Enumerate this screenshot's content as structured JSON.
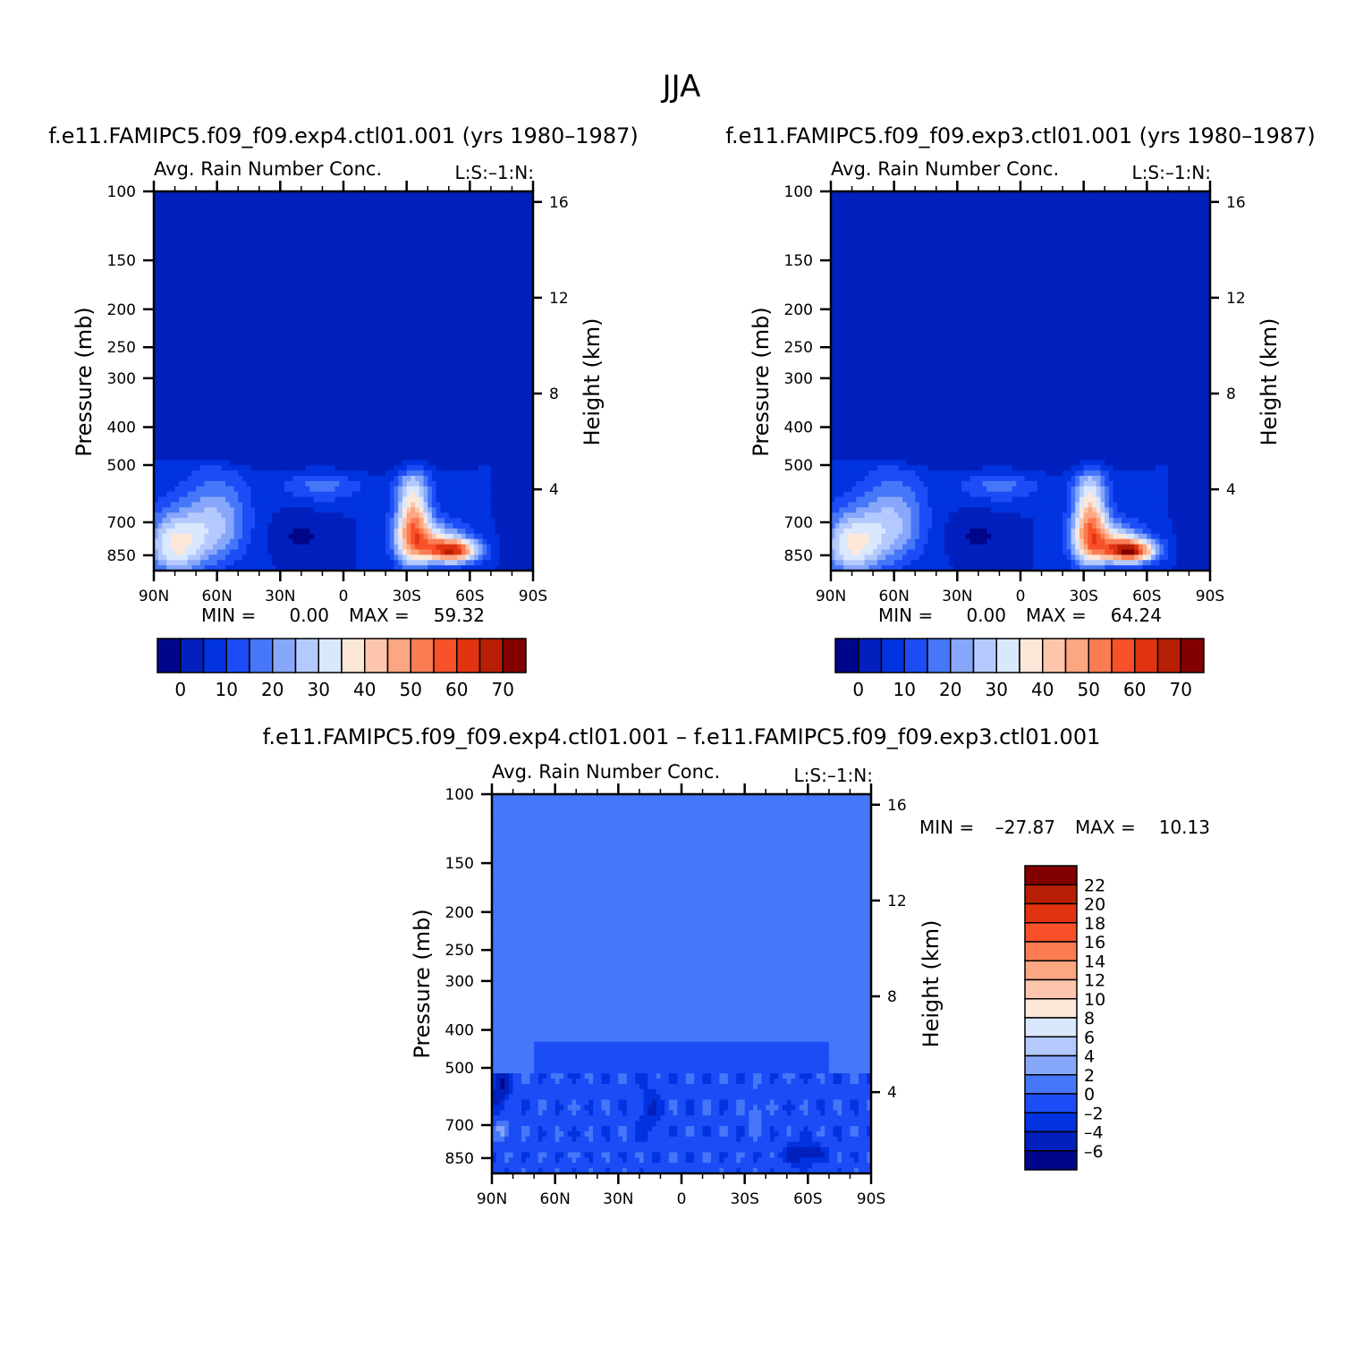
{
  "title": "JJA",
  "colors": {
    "abs_levels": [
      "#00068a",
      "#0120bd",
      "#0133e0",
      "#1c4cf6",
      "#4677f8",
      "#87a7fb",
      "#b4c9fd",
      "#d9e8fd",
      "#fde7d9",
      "#fdc6ac",
      "#fca682",
      "#fb7c52",
      "#f8512a",
      "#e23310",
      "#b71f04",
      "#830000"
    ],
    "diff_levels": [
      "#00068a",
      "#0120bd",
      "#0133e0",
      "#1c4cf6",
      "#4677f8",
      "#87a7fb",
      "#b4c9fd",
      "#d9e8fd",
      "#fde7d9",
      "#fdc6ac",
      "#fca682",
      "#fb7c52",
      "#f8512a",
      "#e23310",
      "#b71f04",
      "#830000"
    ]
  },
  "chart_data": [
    {
      "type": "heatmap",
      "case_title": "f.e11.FAMIPC5.f09_f09.exp4.ctl01.001 (yrs 1980–1987)",
      "variable": "Avg. Rain Number Conc.",
      "subtitle_right": "L:S:–1:N:",
      "ylabel": "Pressure (mb)",
      "ylabel_right": "Height (km)",
      "x_ticks": [
        "90N",
        "60N",
        "30N",
        "0",
        "30S",
        "60S",
        "90S"
      ],
      "x_values": [
        90,
        60,
        30,
        0,
        -30,
        -60,
        -90
      ],
      "y_ticks": [
        "100",
        "150",
        "200",
        "250",
        "300",
        "400",
        "500",
        "700",
        "850"
      ],
      "y_values": [
        100,
        150,
        200,
        250,
        300,
        400,
        500,
        700,
        850
      ],
      "y_right_ticks": [
        "16",
        "12",
        "8",
        "4"
      ],
      "stats": {
        "min_label": "MIN =",
        "min": "0.00",
        "max_label": "MAX =",
        "max": "59.32"
      },
      "colorbar_labels": [
        "0",
        "10",
        "20",
        "30",
        "40",
        "50",
        "60",
        "70"
      ]
    },
    {
      "type": "heatmap",
      "case_title": "f.e11.FAMIPC5.f09_f09.exp3.ctl01.001 (yrs 1980–1987)",
      "variable": "Avg. Rain Number Conc.",
      "subtitle_right": "L:S:–1:N:",
      "ylabel": "Pressure (mb)",
      "ylabel_right": "Height (km)",
      "x_ticks": [
        "90N",
        "60N",
        "30N",
        "0",
        "30S",
        "60S",
        "90S"
      ],
      "x_values": [
        90,
        60,
        30,
        0,
        -30,
        -60,
        -90
      ],
      "y_ticks": [
        "100",
        "150",
        "200",
        "250",
        "300",
        "400",
        "500",
        "700",
        "850"
      ],
      "y_values": [
        100,
        150,
        200,
        250,
        300,
        400,
        500,
        700,
        850
      ],
      "y_right_ticks": [
        "16",
        "12",
        "8",
        "4"
      ],
      "stats": {
        "min_label": "MIN =",
        "min": "0.00",
        "max_label": "MAX =",
        "max": "64.24"
      },
      "colorbar_labels": [
        "0",
        "10",
        "20",
        "30",
        "40",
        "50",
        "60",
        "70"
      ]
    },
    {
      "type": "heatmap",
      "case_title": "f.e11.FAMIPC5.f09_f09.exp4.ctl01.001 – f.e11.FAMIPC5.f09_f09.exp3.ctl01.001",
      "variable": "Avg. Rain Number Conc.",
      "subtitle_right": "L:S:–1:N:",
      "ylabel": "Pressure (mb)",
      "ylabel_right": "Height (km)",
      "x_ticks": [
        "90N",
        "60N",
        "30N",
        "0",
        "30S",
        "60S",
        "90S"
      ],
      "x_values": [
        90,
        60,
        30,
        0,
        -30,
        -60,
        -90
      ],
      "y_ticks": [
        "100",
        "150",
        "200",
        "250",
        "300",
        "400",
        "500",
        "700",
        "850"
      ],
      "y_values": [
        100,
        150,
        200,
        250,
        300,
        400,
        500,
        700,
        850
      ],
      "y_right_ticks": [
        "16",
        "12",
        "8",
        "4"
      ],
      "stats": {
        "min_label": "MIN =",
        "min": "–27.87",
        "max_label": "MAX =",
        "max": "10.13"
      },
      "colorbar_labels": [
        "22",
        "20",
        "18",
        "16",
        "14",
        "12",
        "10",
        "8",
        "6",
        "4",
        "2",
        "0",
        "–2",
        "–4",
        "–6"
      ]
    }
  ]
}
